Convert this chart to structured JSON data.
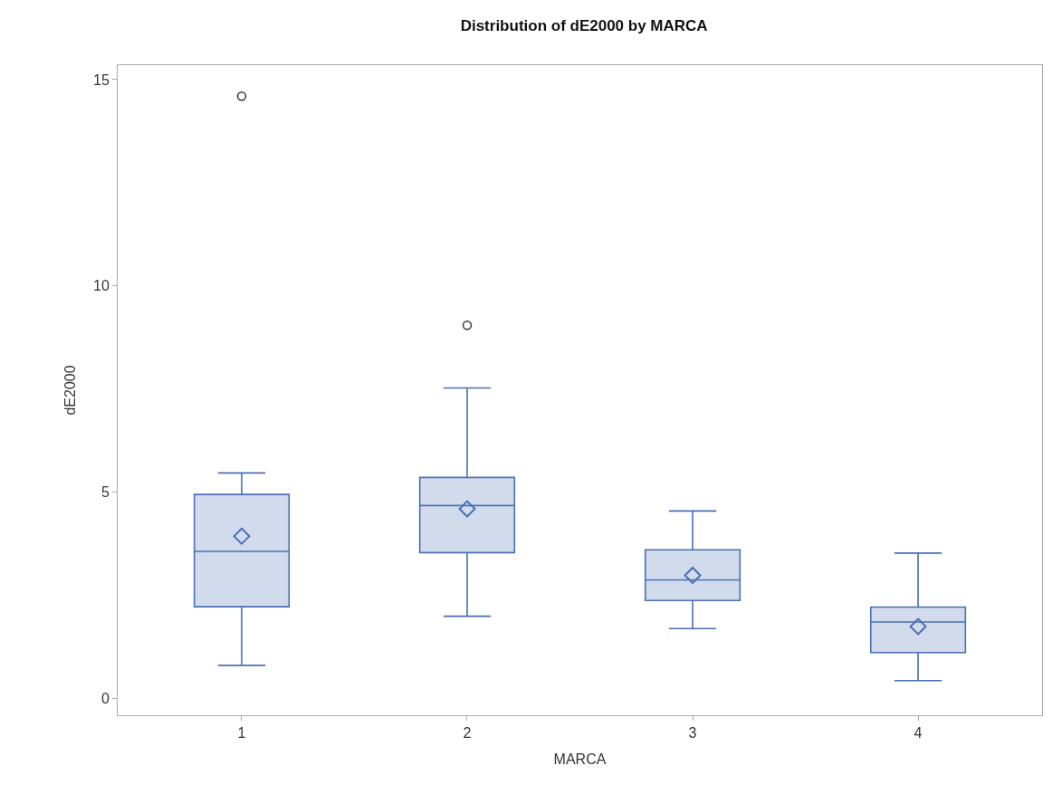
{
  "chart_data": {
    "type": "box",
    "title": "Distribution of dE2000 by MARCA",
    "xlabel": "MARCA",
    "ylabel": "dE2000",
    "categories": [
      "1",
      "2",
      "3",
      "4"
    ],
    "series": [
      {
        "color": "#4a6fb5",
        "boxes": [
          {
            "low": 0.81,
            "q1": 2.23,
            "median": 3.57,
            "q3": 4.95,
            "high": 5.47,
            "mean": 3.94,
            "outliers": [
              14.6
            ]
          },
          {
            "low": 2.0,
            "q1": 3.54,
            "median": 4.68,
            "q3": 5.36,
            "high": 7.53,
            "mean": 4.6,
            "outliers": [
              9.05
            ]
          },
          {
            "low": 1.7,
            "q1": 2.38,
            "median": 2.88,
            "q3": 3.61,
            "high": 4.55,
            "mean": 2.99
          },
          {
            "low": 0.44,
            "q1": 1.12,
            "median": 1.86,
            "q3": 2.22,
            "high": 3.53,
            "mean": 1.75
          }
        ]
      }
    ],
    "ylim": [
      -0.4,
      15.35
    ],
    "yticks": [
      0,
      5,
      10,
      15
    ]
  }
}
